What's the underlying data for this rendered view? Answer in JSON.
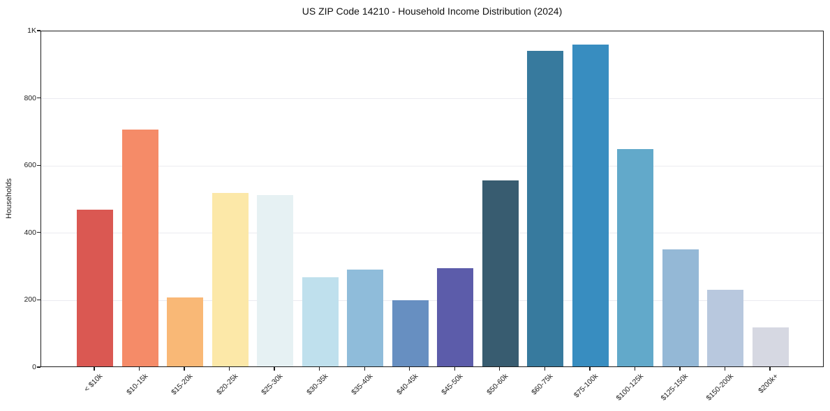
{
  "figure": {
    "background": "#ffffff",
    "spine_color": "#1c1c1c",
    "gridline_color": "#ebebf0"
  },
  "chart_data": {
    "type": "bar",
    "title": "US ZIP Code 14210 - Household Income Distribution (2024)",
    "xlabel": "",
    "ylabel": "Households",
    "categories": [
      "< $10k",
      "$10-15k",
      "$15-20k",
      "$20-25k",
      "$25-30k",
      "$30-35k",
      "$35-40k",
      "$40-45k",
      "$45-50k",
      "$50-60k",
      "$60-75k",
      "$75-100k",
      "$100-125k",
      "$125-150k",
      "$150-200k",
      "$200k+"
    ],
    "values": [
      465,
      705,
      205,
      515,
      510,
      265,
      288,
      196,
      292,
      552,
      938,
      956,
      645,
      348,
      228,
      115
    ],
    "bar_colors": [
      "#da5852",
      "#f58b68",
      "#f9b876",
      "#fce8a8",
      "#e6f1f3",
      "#bfe0ed",
      "#8fbcda",
      "#678fc1",
      "#5c5caa",
      "#385c70",
      "#377a9e",
      "#388dc0",
      "#62a9ca",
      "#94b8d6",
      "#b8c8de",
      "#d6d8e2"
    ],
    "ylim": [
      0,
      1000
    ],
    "yticks": [
      {
        "value": 0,
        "label": "0"
      },
      {
        "value": 200,
        "label": "200"
      },
      {
        "value": 400,
        "label": "400"
      },
      {
        "value": 600,
        "label": "600"
      },
      {
        "value": 800,
        "label": "800"
      },
      {
        "value": 1000,
        "label": "1K"
      }
    ],
    "grid": "horizontal",
    "legend": "none",
    "x_tick_rotation_deg": 45
  }
}
